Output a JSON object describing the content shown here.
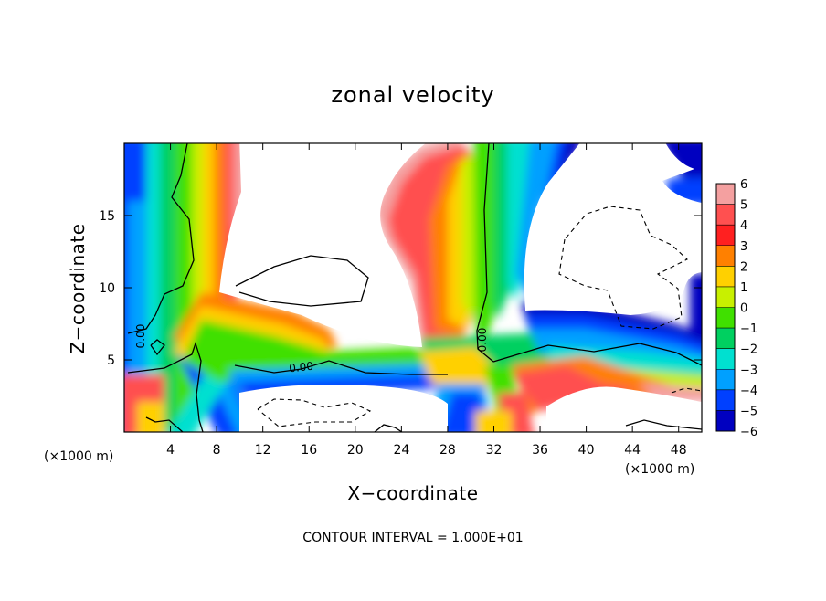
{
  "chart_data": {
    "type": "heatmap",
    "title": "zonal velocity",
    "xlabel": "X−coordinate",
    "ylabel": "Z−coordinate",
    "x_unit_label": "(×1000 m)",
    "y_unit_label": "(×1000 m)",
    "xlim": [
      0,
      50
    ],
    "ylim": [
      0,
      20
    ],
    "x_ticks": [
      4,
      8,
      12,
      16,
      20,
      24,
      28,
      32,
      36,
      40,
      44,
      48
    ],
    "x_tick_labels": [
      "4",
      "8",
      "12",
      "16",
      "20",
      "24",
      "28",
      "32",
      "36",
      "40",
      "44",
      "48"
    ],
    "y_ticks": [
      5,
      10,
      15
    ],
    "y_tick_labels": [
      "5",
      "10",
      "15"
    ],
    "footer": "CONTOUR INTERVAL = 1.000E+01",
    "contour_labels": [
      "0.00",
      "0.00",
      "0.00"
    ],
    "colorbar": {
      "levels": [
        6,
        5,
        4,
        3,
        2,
        1,
        0,
        -1,
        -2,
        -3,
        -4,
        -5,
        -6
      ],
      "labels": [
        "6",
        "5",
        "4",
        "3",
        "2",
        "1",
        "0",
        "−1",
        "−2",
        "−3",
        "−4",
        "−5",
        "−6"
      ],
      "colors": [
        "#f4a0a0",
        "#ff5050",
        "#ff2020",
        "#ff8000",
        "#ffd000",
        "#c8f000",
        "#40e000",
        "#00d060",
        "#00e0d0",
        "#00a0ff",
        "#0040ff",
        "#0000c0",
        "#8000a0"
      ]
    },
    "grid": false,
    "legend_position": "right"
  }
}
